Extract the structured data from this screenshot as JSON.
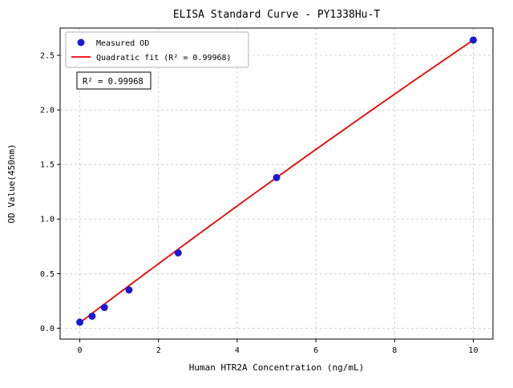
{
  "chart_data": {
    "type": "scatter",
    "title": "ELISA Standard Curve - PY1338Hu-T",
    "xlabel": "Human HTR2A Concentration (ng/mL)",
    "ylabel": "OD Value(450nm)",
    "xlim": [
      -0.5,
      10.5
    ],
    "ylim": [
      -0.1,
      2.75
    ],
    "xticks": [
      0,
      2,
      4,
      6,
      8,
      10
    ],
    "yticks": [
      0.0,
      0.5,
      1.0,
      1.5,
      2.0,
      2.5
    ],
    "grid": true,
    "grid_style": "dashed",
    "legend_position": "upper-left",
    "series": [
      {
        "name": "Measured OD",
        "type": "scatter",
        "color": "#1a1ad6",
        "x": [
          0,
          0.313,
          0.625,
          1.25,
          2.5,
          5,
          10
        ],
        "y": [
          0.055,
          0.11,
          0.19,
          0.35,
          0.69,
          1.38,
          2.64
        ]
      },
      {
        "name": "Quadratic fit (R² = 0.99968)",
        "type": "line",
        "color": "#ee0000",
        "fit_coefficients": {
          "intercept": 0.05,
          "linear": 0.273,
          "quadratic": -0.0014
        },
        "x_range": [
          0,
          10
        ]
      }
    ],
    "annotation": "R² = 0.99968",
    "colors": {
      "points": "#1a1ad6",
      "fit_line": "#ee0000",
      "grid": "#c6c6c6",
      "axes": "#000000",
      "legend_border": "#b0b0b0"
    }
  }
}
